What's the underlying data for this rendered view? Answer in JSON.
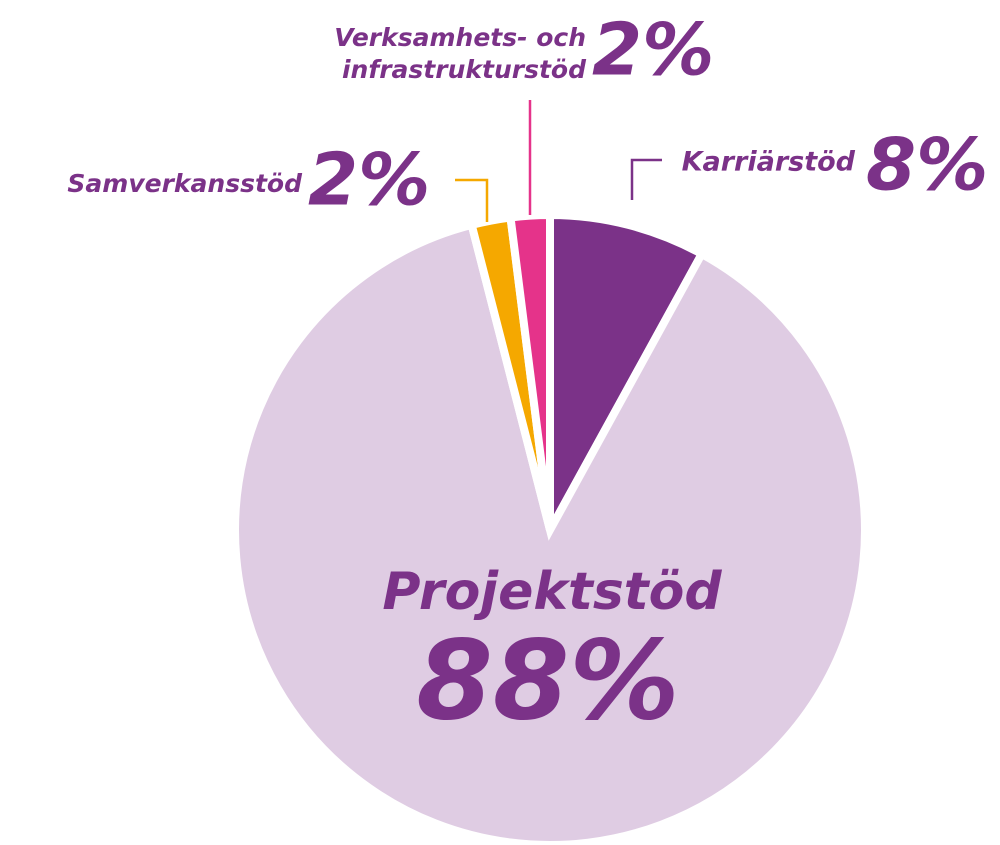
{
  "chart_data": {
    "type": "pie",
    "categories": [
      "Karriärstöd",
      "Projektstöd",
      "Samverkansstöd",
      "Verksamhets- och infrastrukturstöd"
    ],
    "values": [
      8,
      88,
      2,
      2
    ],
    "value_labels": [
      "8%",
      "88%",
      "2%",
      "2%"
    ],
    "colors": [
      "#7b3288",
      "#dfcce3",
      "#f5a800",
      "#e5338a"
    ],
    "label_color": "#7b3288"
  }
}
